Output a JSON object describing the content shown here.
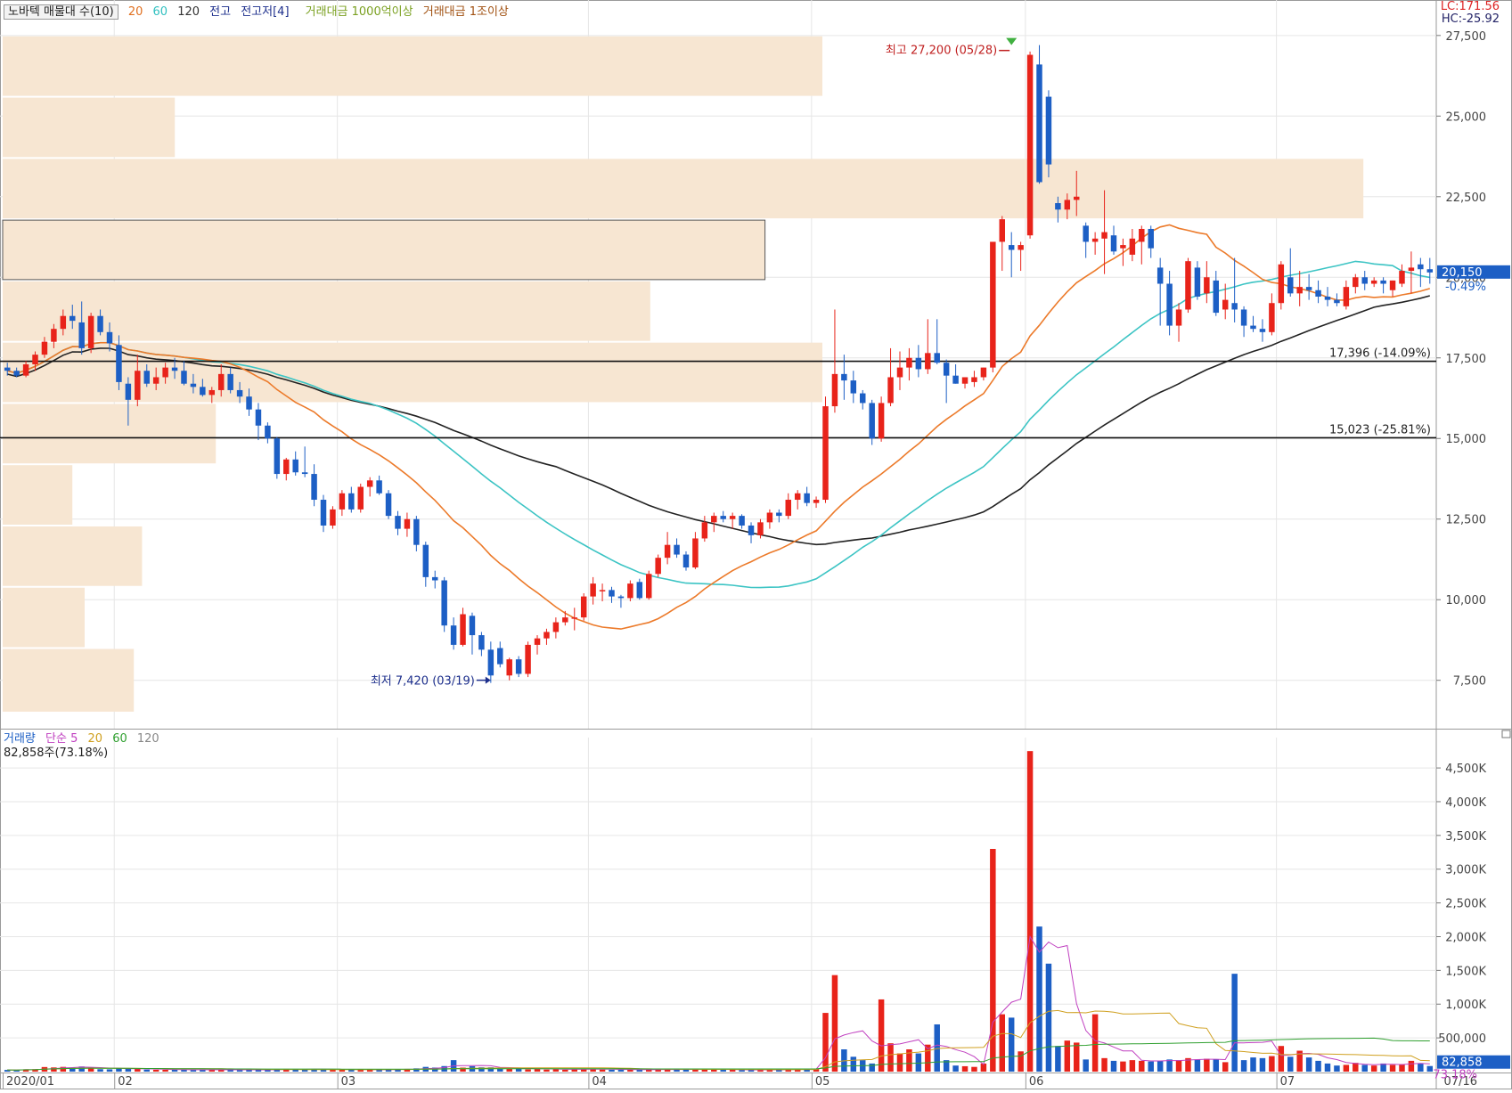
{
  "header": {
    "title": "노바텍 매물대 수(10)",
    "ma_labels": [
      {
        "text": "20",
        "color": "#e07020"
      },
      {
        "text": "60",
        "color": "#30c0c0"
      },
      {
        "text": "120",
        "color": "#333333"
      }
    ],
    "high_low_label": "전고",
    "high_low_value": "전고저[4]",
    "amount_1": "거래대금 1000억이상",
    "amount_2": "거래대금 1조이상",
    "lc": "LC:171.56",
    "hc": "HC:-25.92"
  },
  "volume_header": {
    "label": "거래량",
    "ma_label": "단순 5",
    "ma_20": "20",
    "ma_60": "60",
    "ma_120": "120",
    "current": "82,858주(73.18%)"
  },
  "chart_data": {
    "type": "candlestick",
    "price_axis": {
      "ylim": [
        6000,
        28600
      ],
      "ticks": [
        7500,
        10000,
        12500,
        15000,
        17500,
        20000,
        22500,
        25000,
        27500
      ],
      "tick_labels": [
        "7,500",
        "10,000",
        "12,500",
        "15,000",
        "17,500",
        "20,000",
        "22,500",
        "25,000",
        "27,500"
      ]
    },
    "volume_axis": {
      "ylim": [
        0,
        4950000
      ],
      "ticks": [
        500000,
        1000000,
        1500000,
        2000000,
        2500000,
        3000000,
        3500000,
        4000000,
        4500000
      ],
      "tick_labels": [
        "500,000",
        "1,000K",
        "1,500K",
        "2,000K",
        "2,500K",
        "3,000K",
        "3,500K",
        "4,000K",
        "4,500K"
      ]
    },
    "x_axis": {
      "bars": 152,
      "month_ticks": [
        {
          "index": 0,
          "label": "2020/01"
        },
        {
          "index": 12,
          "label": "02"
        },
        {
          "index": 36,
          "label": "03"
        },
        {
          "index": 63,
          "label": "04"
        },
        {
          "index": 87,
          "label": "05"
        },
        {
          "index": 110,
          "label": "06"
        },
        {
          "index": 137,
          "label": "07"
        }
      ],
      "end_label": "07/16"
    },
    "colors": {
      "up": "#e8231a",
      "down": "#1d5fc5",
      "ma20": "#ec7a2a",
      "ma60": "#3cc4c4",
      "ma120": "#222222"
    },
    "current_price": {
      "value": 20150,
      "label": "20,150",
      "change": "-0.49%"
    },
    "current_volume": {
      "value": 82858,
      "label": "82,858",
      "change": "73.18%"
    },
    "high_annotation": {
      "value": 27200,
      "text": "최고 27,200 (05/28)",
      "index": 108
    },
    "low_annotation": {
      "value": 7420,
      "text": "최저 7,420 (03/19)",
      "index": 52
    },
    "levels": [
      {
        "value": 17396,
        "label": "17,396 (-14.09%)"
      },
      {
        "value": 15023,
        "label": "15,023 (-25.81%)"
      }
    ],
    "volume_profile": [
      {
        "low": 6500,
        "high": 8500,
        "weight": 0.16
      },
      {
        "low": 8500,
        "high": 10400,
        "weight": 0.1
      },
      {
        "low": 10400,
        "high": 12300,
        "weight": 0.17
      },
      {
        "low": 12300,
        "high": 14200,
        "weight": 0.085
      },
      {
        "low": 14200,
        "high": 16100,
        "weight": 0.26
      },
      {
        "low": 16100,
        "high": 18000,
        "weight": 1.0
      },
      {
        "low": 18000,
        "high": 19900,
        "weight": 0.79
      },
      {
        "low": 19900,
        "high": 21800,
        "weight": 0.93,
        "highlight": true
      },
      {
        "low": 21800,
        "high": 23700,
        "weight": 1.66
      },
      {
        "low": 23700,
        "high": 25600,
        "weight": 0.21
      },
      {
        "low": 25600,
        "high": 27500,
        "weight": 1.0
      }
    ],
    "candles": [
      [
        17200,
        17350,
        16950,
        17100,
        25000
      ],
      [
        17100,
        17200,
        16900,
        16950,
        23000
      ],
      [
        16950,
        17400,
        16900,
        17300,
        34000
      ],
      [
        17300,
        17700,
        17100,
        17600,
        36000
      ],
      [
        17600,
        18150,
        17500,
        18000,
        68000
      ],
      [
        18000,
        18550,
        17800,
        18400,
        62000
      ],
      [
        18400,
        19000,
        18200,
        18800,
        70000
      ],
      [
        18800,
        19150,
        18400,
        18650,
        58000
      ],
      [
        18600,
        19250,
        17600,
        17800,
        76000
      ],
      [
        17800,
        18900,
        17650,
        18800,
        58000
      ],
      [
        18800,
        19000,
        18200,
        18300,
        36000
      ],
      [
        18300,
        18600,
        17700,
        17950,
        34000
      ],
      [
        17900,
        18200,
        16500,
        16750,
        52000
      ],
      [
        16700,
        16900,
        15400,
        16200,
        46000
      ],
      [
        16200,
        17600,
        16000,
        17100,
        40000
      ],
      [
        17100,
        17300,
        16600,
        16700,
        30000
      ],
      [
        16700,
        17200,
        16500,
        16900,
        28000
      ],
      [
        16900,
        17350,
        16700,
        17200,
        27000
      ],
      [
        17200,
        17500,
        16850,
        17100,
        32000
      ],
      [
        17100,
        17400,
        16650,
        16700,
        26000
      ],
      [
        16700,
        17000,
        16400,
        16600,
        24000
      ],
      [
        16600,
        16850,
        16300,
        16350,
        30000
      ],
      [
        16350,
        16600,
        16100,
        16500,
        28000
      ],
      [
        16500,
        17300,
        16300,
        17000,
        32000
      ],
      [
        17000,
        17200,
        16400,
        16500,
        26000
      ],
      [
        16500,
        16750,
        16100,
        16300,
        24000
      ],
      [
        16300,
        16550,
        15700,
        15900,
        30000
      ],
      [
        15900,
        16100,
        14950,
        15400,
        28000
      ],
      [
        15400,
        15500,
        14850,
        15000,
        26000
      ],
      [
        15000,
        15050,
        13750,
        13900,
        34000
      ],
      [
        13900,
        14400,
        13700,
        14350,
        40000
      ],
      [
        14350,
        14600,
        13850,
        13950,
        38000
      ],
      [
        13950,
        14750,
        13800,
        13900,
        30000
      ],
      [
        13900,
        14200,
        12900,
        13100,
        36000
      ],
      [
        13100,
        13250,
        12100,
        12300,
        32000
      ],
      [
        12300,
        12900,
        12200,
        12800,
        36000
      ],
      [
        12800,
        13400,
        12600,
        13300,
        32000
      ],
      [
        13300,
        13500,
        12700,
        12800,
        30000
      ],
      [
        12800,
        13600,
        12700,
        13500,
        26000
      ],
      [
        13500,
        13800,
        13200,
        13700,
        32000
      ],
      [
        13700,
        13850,
        13250,
        13300,
        30000
      ],
      [
        13300,
        13400,
        12500,
        12600,
        34000
      ],
      [
        12600,
        12750,
        12000,
        12200,
        38000
      ],
      [
        12200,
        12700,
        11950,
        12500,
        36000
      ],
      [
        12500,
        12600,
        11500,
        11700,
        48000
      ],
      [
        11700,
        11800,
        10400,
        10700,
        70000
      ],
      [
        10700,
        10900,
        10350,
        10600,
        60000
      ],
      [
        10600,
        10700,
        9000,
        9200,
        82000
      ],
      [
        9200,
        9450,
        8450,
        8600,
        170000
      ],
      [
        8600,
        9750,
        8550,
        9550,
        60000
      ],
      [
        9500,
        9600,
        8300,
        8900,
        80000
      ],
      [
        8900,
        9000,
        8250,
        8450,
        64000
      ],
      [
        8450,
        8700,
        7420,
        7650,
        64000
      ],
      [
        8500,
        8700,
        7900,
        8000,
        48000
      ],
      [
        7650,
        8200,
        7500,
        8150,
        40000
      ],
      [
        8150,
        8250,
        7600,
        7700,
        56000
      ],
      [
        7700,
        8700,
        7600,
        8600,
        34000
      ],
      [
        8600,
        8900,
        8300,
        8800,
        42000
      ],
      [
        8800,
        9100,
        8600,
        9000,
        30000
      ],
      [
        9000,
        9450,
        8800,
        9300,
        38000
      ],
      [
        9300,
        9650,
        9200,
        9450,
        28000
      ],
      [
        9450,
        9750,
        9050,
        9450,
        34000
      ],
      [
        9450,
        10200,
        9350,
        10100,
        44000
      ],
      [
        10100,
        10700,
        9850,
        10500,
        40000
      ],
      [
        10300,
        10500,
        9950,
        10300,
        30000
      ],
      [
        10300,
        10400,
        9900,
        10100,
        28000
      ],
      [
        10100,
        10150,
        9750,
        10050,
        26000
      ],
      [
        10050,
        10600,
        9950,
        10500,
        32000
      ],
      [
        10550,
        10650,
        10000,
        10050,
        28000
      ],
      [
        10050,
        10900,
        10000,
        10800,
        30000
      ],
      [
        10800,
        11400,
        10700,
        11300,
        32000
      ],
      [
        11300,
        12100,
        11100,
        11700,
        40000
      ],
      [
        11700,
        11900,
        11300,
        11400,
        28000
      ],
      [
        11400,
        11500,
        10900,
        11000,
        32000
      ],
      [
        11000,
        12100,
        10950,
        11900,
        36000
      ],
      [
        11900,
        12600,
        11800,
        12400,
        40000
      ],
      [
        12400,
        12700,
        12100,
        12600,
        30000
      ],
      [
        12600,
        12750,
        12400,
        12500,
        26000
      ],
      [
        12500,
        12700,
        12200,
        12600,
        28000
      ],
      [
        12600,
        12650,
        12200,
        12300,
        24000
      ],
      [
        12300,
        12400,
        11750,
        12000,
        26000
      ],
      [
        12000,
        12500,
        11900,
        12400,
        28000
      ],
      [
        12400,
        12800,
        12200,
        12700,
        32000
      ],
      [
        12700,
        12800,
        12400,
        12600,
        28000
      ],
      [
        12600,
        13300,
        12500,
        13100,
        32000
      ],
      [
        13100,
        13400,
        12800,
        13300,
        40000
      ],
      [
        13300,
        13500,
        12900,
        13000,
        38000
      ],
      [
        13000,
        13200,
        12850,
        13100,
        44000
      ],
      [
        13100,
        16300,
        13000,
        16000,
        870000
      ],
      [
        16000,
        19000,
        15800,
        17000,
        1430000
      ],
      [
        17000,
        17600,
        16200,
        16800,
        330000
      ],
      [
        16800,
        17100,
        16100,
        16400,
        220000
      ],
      [
        16400,
        16500,
        15900,
        16100,
        170000
      ],
      [
        16100,
        16200,
        14800,
        15000,
        120000
      ],
      [
        15000,
        16300,
        14900,
        16100,
        1070000
      ],
      [
        16100,
        17800,
        16000,
        16900,
        420000
      ],
      [
        16900,
        17700,
        16500,
        17200,
        270000
      ],
      [
        17200,
        17800,
        16800,
        17500,
        330000
      ],
      [
        17500,
        17900,
        16900,
        17150,
        270000
      ],
      [
        17150,
        18700,
        17000,
        17650,
        400000
      ],
      [
        17650,
        18700,
        17300,
        17350,
        700000
      ],
      [
        17350,
        17450,
        16100,
        16950,
        170000
      ],
      [
        16950,
        17300,
        16700,
        16700,
        90000
      ],
      [
        16700,
        16900,
        16550,
        16900,
        80000
      ],
      [
        16750,
        17100,
        16600,
        16900,
        70000
      ],
      [
        16900,
        17200,
        16800,
        17200,
        120000
      ],
      [
        17200,
        21100,
        17050,
        21100,
        3300000
      ],
      [
        21100,
        21900,
        20200,
        21800,
        850000
      ],
      [
        21000,
        21400,
        20000,
        20850,
        800000
      ],
      [
        20850,
        21100,
        20200,
        21000,
        300000
      ],
      [
        21300,
        27000,
        21200,
        26900,
        4750000
      ],
      [
        26600,
        27200,
        22900,
        22950,
        2150000
      ],
      [
        25600,
        25800,
        23100,
        23500,
        1600000
      ],
      [
        22300,
        22500,
        21700,
        22100,
        380000
      ],
      [
        22100,
        22600,
        21800,
        22400,
        460000
      ],
      [
        22400,
        23300,
        21900,
        22500,
        430000
      ],
      [
        21600,
        21700,
        20600,
        21100,
        180000
      ],
      [
        21100,
        21400,
        20700,
        21200,
        850000
      ],
      [
        21200,
        22700,
        20100,
        21400,
        200000
      ],
      [
        21300,
        21600,
        20700,
        20800,
        160000
      ],
      [
        20900,
        21200,
        20350,
        21000,
        150000
      ],
      [
        20700,
        21500,
        20500,
        21200,
        170000
      ],
      [
        21100,
        21600,
        20400,
        21500,
        160000
      ],
      [
        21500,
        21600,
        20600,
        20900,
        150000
      ],
      [
        20300,
        20600,
        18500,
        19800,
        160000
      ],
      [
        19800,
        20200,
        18200,
        18500,
        180000
      ],
      [
        18500,
        19200,
        18000,
        19000,
        170000
      ],
      [
        19000,
        20600,
        18900,
        20500,
        200000
      ],
      [
        20300,
        20500,
        19300,
        19400,
        180000
      ],
      [
        19500,
        20500,
        19200,
        20000,
        190000
      ],
      [
        19900,
        20200,
        18800,
        18900,
        180000
      ],
      [
        19000,
        19800,
        18700,
        19300,
        140000
      ],
      [
        19200,
        20600,
        18600,
        19000,
        1450000
      ],
      [
        19000,
        19100,
        18150,
        18500,
        170000
      ],
      [
        18500,
        18800,
        18300,
        18400,
        210000
      ],
      [
        18400,
        18700,
        18000,
        18300,
        200000
      ],
      [
        18300,
        19500,
        18200,
        19200,
        230000
      ],
      [
        19200,
        20500,
        19000,
        20400,
        380000
      ],
      [
        20000,
        20900,
        19400,
        19500,
        220000
      ],
      [
        19500,
        20200,
        19100,
        19700,
        310000
      ],
      [
        19700,
        20100,
        19300,
        19600,
        210000
      ],
      [
        19600,
        19900,
        19200,
        19400,
        160000
      ],
      [
        19400,
        19700,
        19100,
        19300,
        120000
      ],
      [
        19300,
        19500,
        19100,
        19200,
        90000
      ],
      [
        19100,
        19900,
        19000,
        19700,
        100000
      ],
      [
        19700,
        20100,
        19500,
        20000,
        130000
      ],
      [
        20000,
        20200,
        19600,
        19800,
        100000
      ],
      [
        19800,
        20000,
        19700,
        19900,
        90000
      ],
      [
        19900,
        20000,
        19500,
        19800,
        120000
      ],
      [
        19600,
        19900,
        19400,
        19900,
        100000
      ],
      [
        19800,
        20400,
        19700,
        20200,
        110000
      ],
      [
        20200,
        20800,
        19500,
        20300,
        160000
      ],
      [
        20400,
        20600,
        19700,
        20250,
        120000
      ],
      [
        20250,
        20600,
        19800,
        20150,
        82858
      ]
    ]
  }
}
